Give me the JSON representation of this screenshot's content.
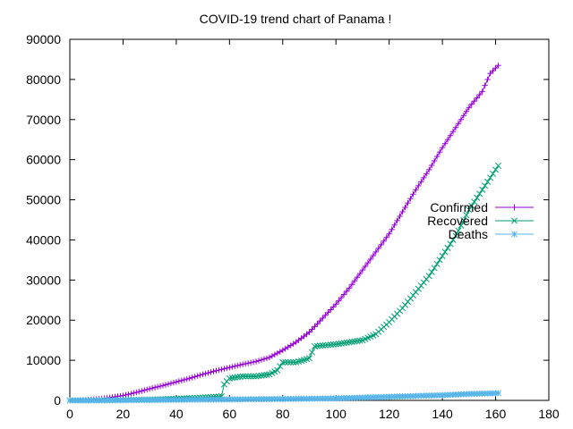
{
  "chart_data": {
    "type": "line",
    "title": "COVID-19 trend chart of Panama !",
    "xlabel": "",
    "ylabel": "",
    "xlim": [
      0,
      180
    ],
    "ylim": [
      0,
      90000
    ],
    "x_ticks": [
      0,
      20,
      40,
      60,
      80,
      100,
      120,
      140,
      160,
      180
    ],
    "y_ticks": [
      0,
      10000,
      20000,
      30000,
      40000,
      50000,
      60000,
      70000,
      80000,
      90000
    ],
    "grid": false,
    "legend_position": "right",
    "series": [
      {
        "name": "Confirmed",
        "color": "#9400d3",
        "marker": "plus",
        "points": [
          [
            0,
            0
          ],
          [
            5,
            100
          ],
          [
            10,
            300
          ],
          [
            15,
            700
          ],
          [
            20,
            1200
          ],
          [
            25,
            2000
          ],
          [
            30,
            2900
          ],
          [
            35,
            3700
          ],
          [
            40,
            4600
          ],
          [
            45,
            5500
          ],
          [
            50,
            6500
          ],
          [
            55,
            7400
          ],
          [
            60,
            8200
          ],
          [
            65,
            9000
          ],
          [
            70,
            9700
          ],
          [
            75,
            10700
          ],
          [
            80,
            12500
          ],
          [
            85,
            14500
          ],
          [
            90,
            17000
          ],
          [
            95,
            20500
          ],
          [
            100,
            24000
          ],
          [
            105,
            28000
          ],
          [
            110,
            32500
          ],
          [
            115,
            37000
          ],
          [
            120,
            41500
          ],
          [
            125,
            47000
          ],
          [
            130,
            52500
          ],
          [
            135,
            57500
          ],
          [
            140,
            63000
          ],
          [
            145,
            68000
          ],
          [
            150,
            73000
          ],
          [
            155,
            77000
          ],
          [
            158,
            81500
          ],
          [
            161,
            83500
          ]
        ]
      },
      {
        "name": "Recovered",
        "color": "#009e73",
        "marker": "cross",
        "points": [
          [
            0,
            0
          ],
          [
            10,
            0
          ],
          [
            20,
            100
          ],
          [
            30,
            200
          ],
          [
            40,
            400
          ],
          [
            50,
            700
          ],
          [
            57,
            1000
          ],
          [
            58,
            4000
          ],
          [
            60,
            5500
          ],
          [
            65,
            6000
          ],
          [
            70,
            6000
          ],
          [
            75,
            6500
          ],
          [
            78,
            7500
          ],
          [
            80,
            9500
          ],
          [
            85,
            9500
          ],
          [
            90,
            10500
          ],
          [
            92,
            13500
          ],
          [
            100,
            14000
          ],
          [
            105,
            14500
          ],
          [
            110,
            15000
          ],
          [
            115,
            16500
          ],
          [
            120,
            19500
          ],
          [
            125,
            23000
          ],
          [
            130,
            27000
          ],
          [
            135,
            31000
          ],
          [
            140,
            36000
          ],
          [
            145,
            41000
          ],
          [
            150,
            47500
          ],
          [
            155,
            52500
          ],
          [
            161,
            58500
          ]
        ]
      },
      {
        "name": "Deaths",
        "color": "#56b4e9",
        "marker": "star",
        "points": [
          [
            0,
            0
          ],
          [
            20,
            50
          ],
          [
            40,
            150
          ],
          [
            60,
            250
          ],
          [
            80,
            350
          ],
          [
            100,
            500
          ],
          [
            120,
            900
          ],
          [
            140,
            1300
          ],
          [
            150,
            1600
          ],
          [
            161,
            1800
          ]
        ]
      }
    ]
  }
}
